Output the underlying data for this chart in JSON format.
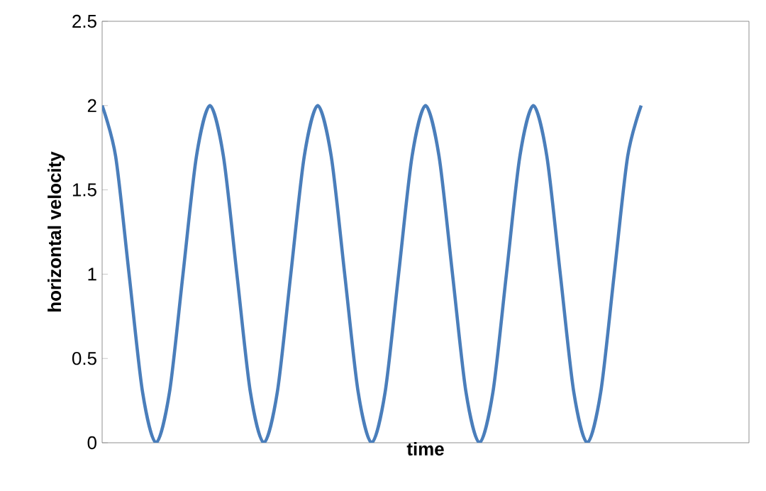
{
  "chart_data": {
    "type": "line",
    "xlabel": "time",
    "ylabel": "horizontal velocity",
    "categories": [
      null,
      null,
      null,
      null,
      null,
      null,
      null,
      null,
      null,
      null,
      null,
      null,
      null,
      null,
      null,
      null,
      null,
      null,
      null,
      null,
      null,
      null,
      null,
      null,
      null,
      null,
      null,
      null,
      null,
      null,
      null,
      null,
      null,
      null,
      null,
      null,
      null,
      null,
      null,
      null,
      null,
      null,
      null,
      null,
      null,
      null,
      null,
      null,
      null
    ],
    "series": [
      {
        "color": "#4a7ebb",
        "values": [
          2,
          1.7,
          1,
          0.3,
          0,
          0.3,
          1,
          1.7,
          2,
          1.7,
          1,
          0.3,
          0,
          0.3,
          1,
          1.7,
          2,
          1.7,
          1,
          0.3,
          0,
          0.3,
          1,
          1.7,
          2,
          1.7,
          1,
          0.3,
          0,
          0.3,
          1,
          1.7,
          2,
          1.7,
          1,
          0.3,
          0,
          0.3,
          1,
          1.7,
          2,
          null,
          null,
          null,
          null,
          null,
          null,
          null,
          null
        ]
      }
    ],
    "ylim": [
      0,
      2.5
    ],
    "yticks": [
      0,
      0.5,
      1,
      1.5,
      2,
      2.5
    ],
    "grid": false,
    "marker": "none",
    "line_style": "solid"
  }
}
